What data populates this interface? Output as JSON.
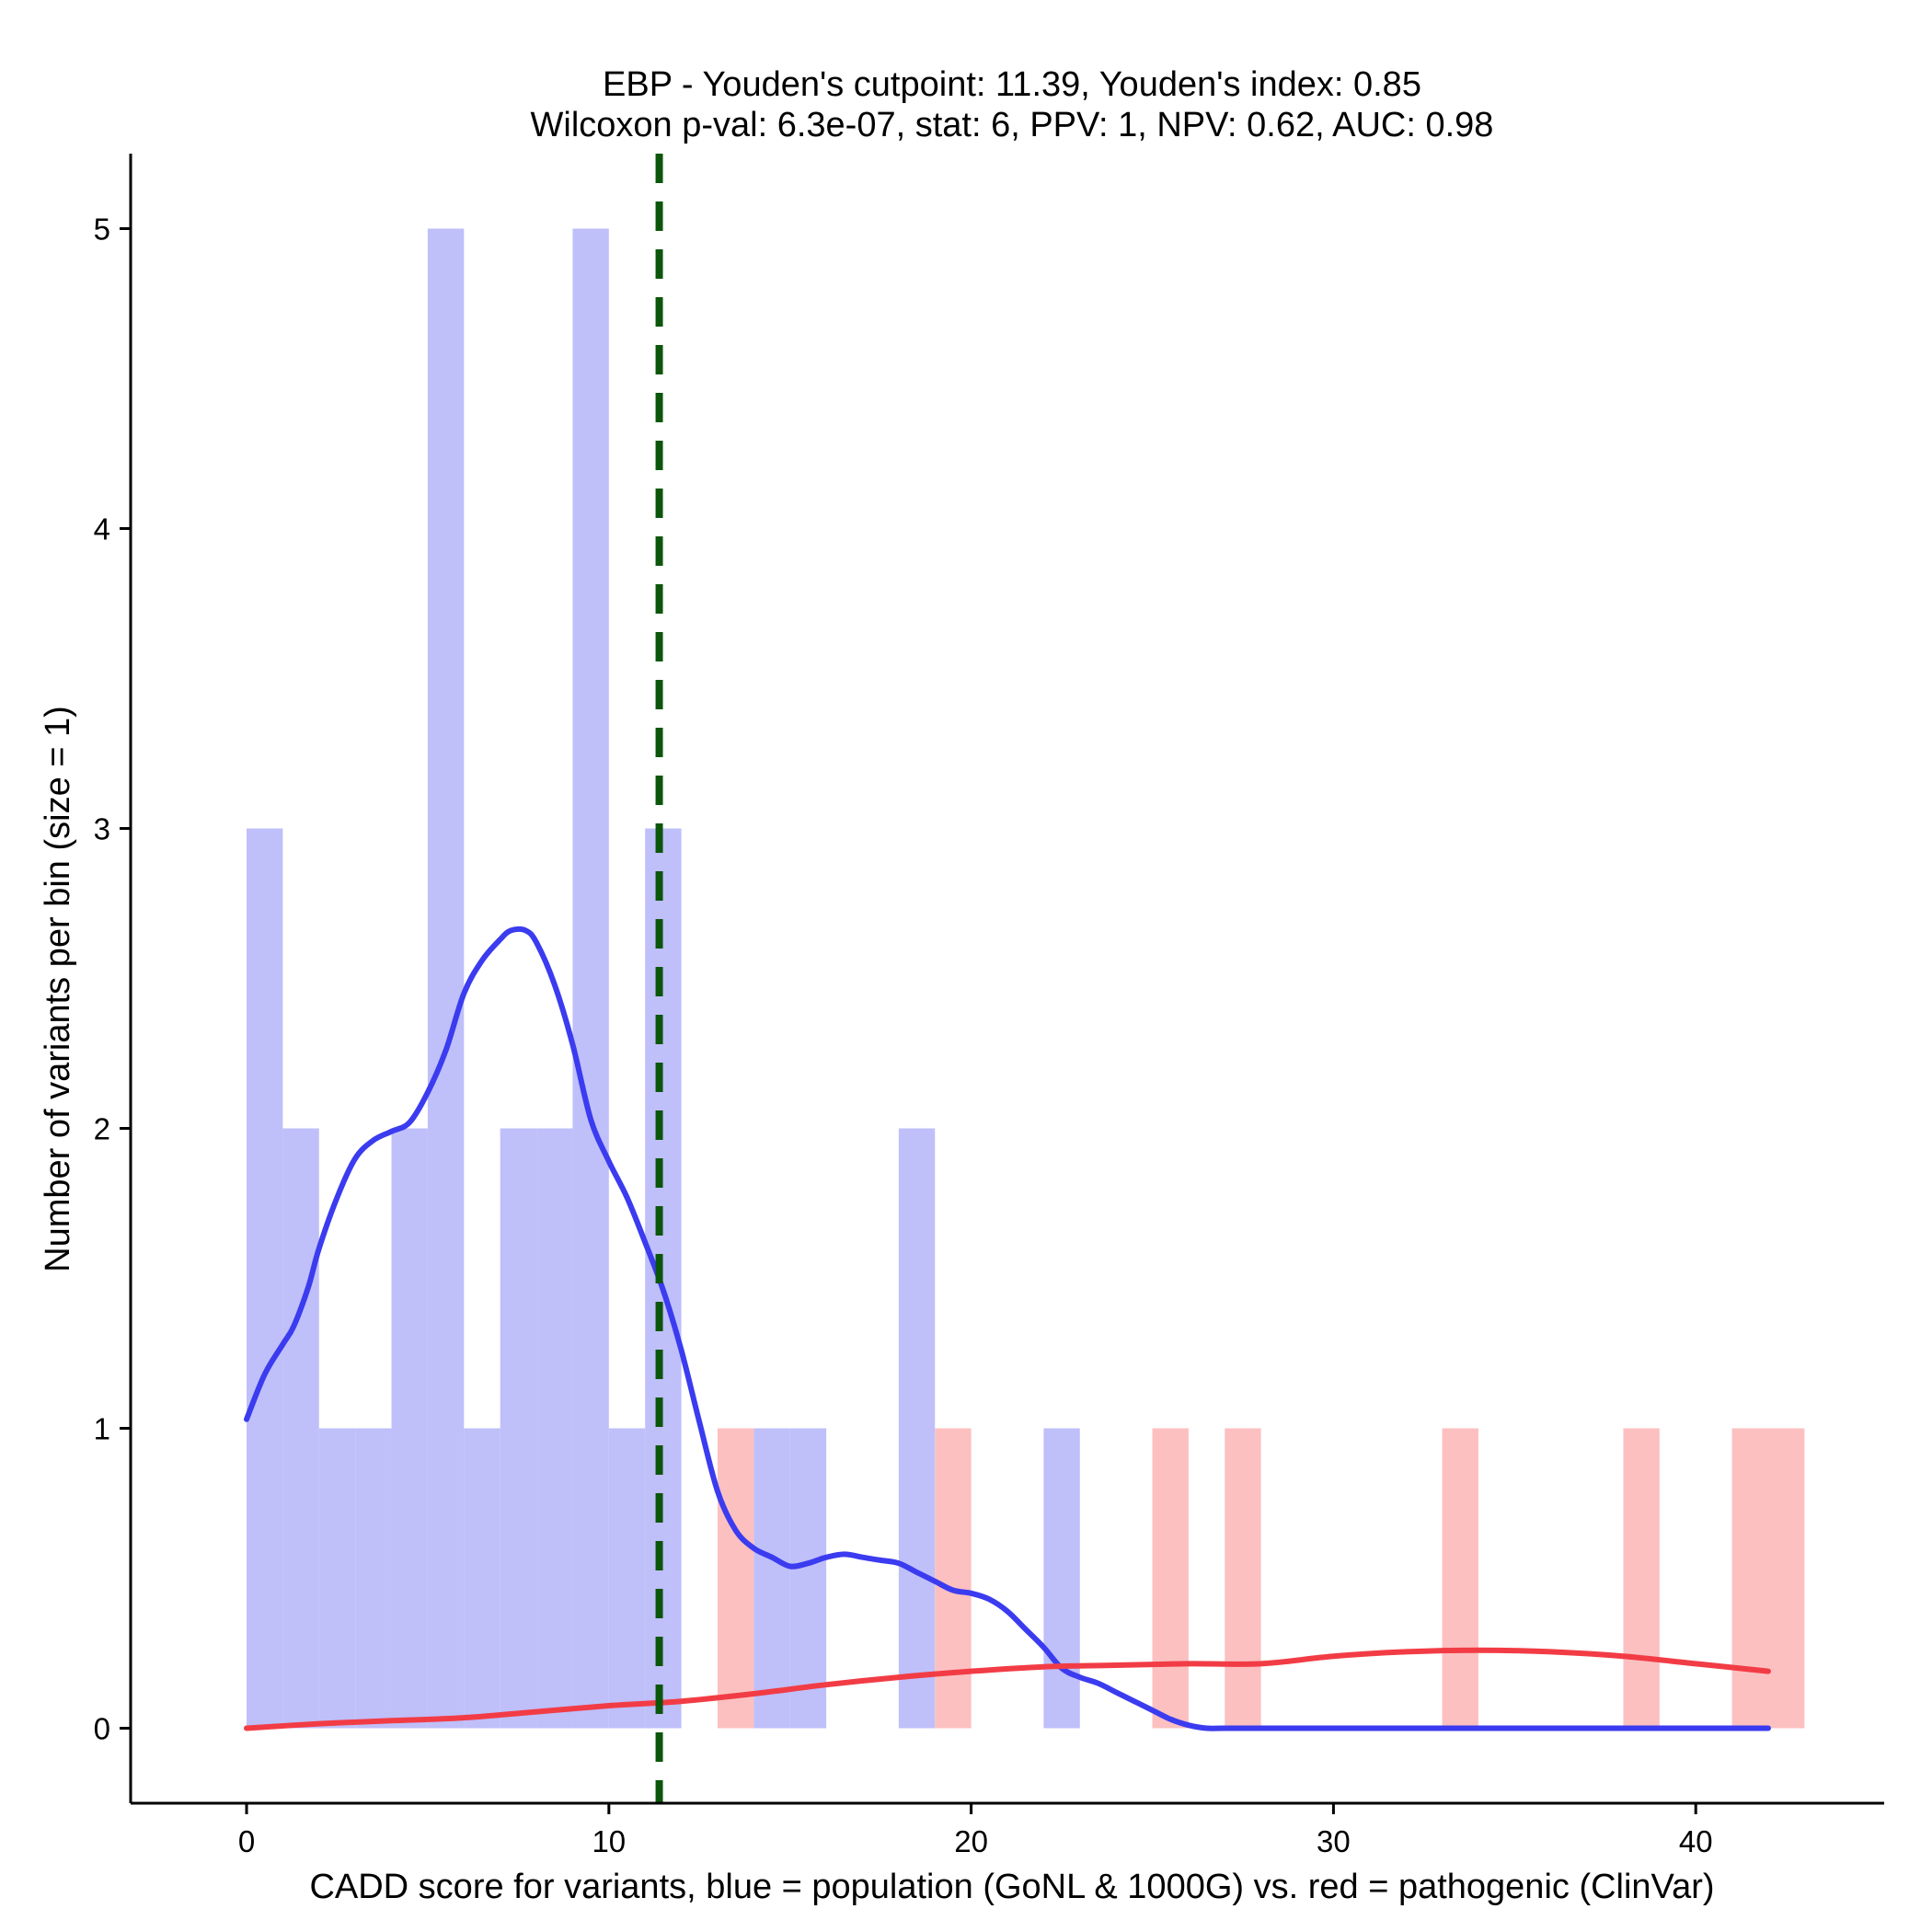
{
  "chart_data": {
    "type": "bar",
    "title_line1": "EBP - Youden's cutpoint: 11.39, Youden's index: 0.85",
    "title_line2": "Wilcoxon p-val: 6.3e-07, stat: 6, PPV: 1, NPV: 0.62, AUC: 0.98",
    "xlabel": "CADD score for variants, blue = population (GoNL & 1000G) vs. red = pathogenic (ClinVar)",
    "ylabel": "Number of variants per bin (size = 1)",
    "xlim": [
      -3.2,
      45.2
    ],
    "ylim": [
      -0.25,
      5.25
    ],
    "x_ticks": [
      0,
      10,
      20,
      30,
      40
    ],
    "y_ticks": [
      0,
      1,
      2,
      3,
      4,
      5
    ],
    "cutpoint": 11.39,
    "colors": {
      "population_fill": "#bfbffa",
      "pathogenic_fill": "#fcc0c0",
      "population_line": "#3b3bf0",
      "pathogenic_line": "#f23c45",
      "cutpoint_line": "#0c560c"
    },
    "series": [
      {
        "name": "population (GoNL & 1000G)",
        "bins": [
          {
            "start": 0,
            "end": 1,
            "count": 3
          },
          {
            "start": 1,
            "end": 2,
            "count": 2
          },
          {
            "start": 2,
            "end": 3,
            "count": 1
          },
          {
            "start": 3,
            "end": 4,
            "count": 1
          },
          {
            "start": 4,
            "end": 5,
            "count": 2
          },
          {
            "start": 5,
            "end": 6,
            "count": 5
          },
          {
            "start": 6,
            "end": 7,
            "count": 1
          },
          {
            "start": 7,
            "end": 8,
            "count": 2
          },
          {
            "start": 8,
            "end": 9,
            "count": 2
          },
          {
            "start": 9,
            "end": 10,
            "count": 5
          },
          {
            "start": 10,
            "end": 11,
            "count": 1
          },
          {
            "start": 11,
            "end": 12,
            "count": 3
          },
          {
            "start": 14,
            "end": 15,
            "count": 1
          },
          {
            "start": 15,
            "end": 16,
            "count": 1
          },
          {
            "start": 18,
            "end": 19,
            "count": 2
          },
          {
            "start": 22,
            "end": 23,
            "count": 1
          }
        ],
        "density": {
          "x": [
            0,
            0.5,
            1,
            1.3,
            1.7,
            2,
            2.5,
            3,
            3.5,
            4,
            4.5,
            5,
            5.5,
            6,
            6.5,
            7,
            7.3,
            7.7,
            8,
            8.5,
            9,
            9.5,
            10,
            10.5,
            11,
            11.5,
            12,
            12.5,
            13,
            13.5,
            14,
            14.5,
            15,
            15.5,
            16,
            16.5,
            17,
            17.5,
            18,
            18.5,
            19,
            19.5,
            20,
            20.5,
            21,
            21.5,
            22,
            22.5,
            23,
            23.5,
            24,
            24.5,
            25,
            25.5,
            26,
            26.5,
            27,
            28,
            30,
            35,
            42
          ],
          "y": [
            1.03,
            1.18,
            1.28,
            1.34,
            1.47,
            1.6,
            1.77,
            1.9,
            1.96,
            1.99,
            2.02,
            2.12,
            2.26,
            2.45,
            2.56,
            2.63,
            2.66,
            2.66,
            2.62,
            2.48,
            2.28,
            2.03,
            1.89,
            1.77,
            1.62,
            1.46,
            1.26,
            1.02,
            0.79,
            0.66,
            0.6,
            0.57,
            0.54,
            0.55,
            0.57,
            0.58,
            0.57,
            0.56,
            0.55,
            0.52,
            0.49,
            0.46,
            0.45,
            0.43,
            0.39,
            0.33,
            0.27,
            0.2,
            0.17,
            0.15,
            0.12,
            0.09,
            0.06,
            0.03,
            0.01,
            0,
            0,
            0,
            0,
            0,
            0
          ]
        }
      },
      {
        "name": "pathogenic (ClinVar)",
        "bins": [
          {
            "start": 13,
            "end": 14,
            "count": 1
          },
          {
            "start": 19,
            "end": 20,
            "count": 1
          },
          {
            "start": 25,
            "end": 26,
            "count": 1
          },
          {
            "start": 27,
            "end": 28,
            "count": 1
          },
          {
            "start": 33,
            "end": 34,
            "count": 1
          },
          {
            "start": 38,
            "end": 39,
            "count": 1
          },
          {
            "start": 41,
            "end": 42,
            "count": 1
          },
          {
            "start": 42,
            "end": 43,
            "count": 1
          }
        ],
        "density": {
          "x": [
            0,
            2,
            4,
            6,
            8,
            10,
            12,
            14,
            16,
            18,
            20,
            22,
            24,
            26,
            28,
            30,
            32,
            34,
            36,
            38,
            40,
            42
          ],
          "y": [
            0,
            0.015,
            0.025,
            0.035,
            0.055,
            0.075,
            0.09,
            0.115,
            0.145,
            0.17,
            0.19,
            0.205,
            0.21,
            0.215,
            0.215,
            0.24,
            0.255,
            0.26,
            0.255,
            0.24,
            0.215,
            0.19
          ]
        }
      }
    ]
  }
}
